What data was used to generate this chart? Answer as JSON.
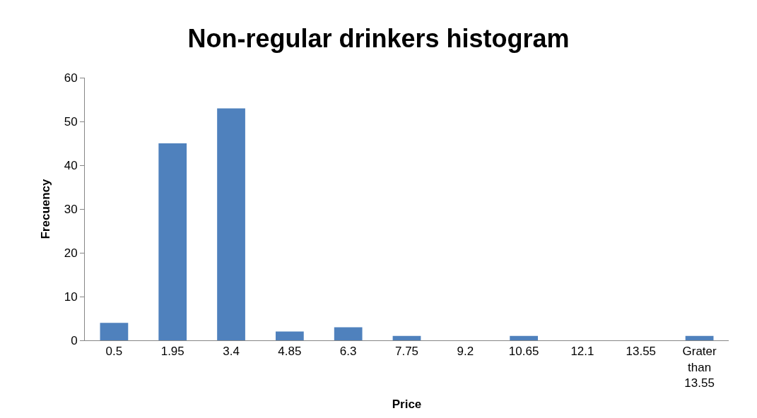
{
  "chart_data": {
    "type": "bar",
    "title": "Non-regular drinkers histogram",
    "xlabel": "Price",
    "ylabel": "Frecuency",
    "categories": [
      "0.5",
      "1.95",
      "3.4",
      "4.85",
      "6.3",
      "7.75",
      "9.2",
      "10.65",
      "12.1",
      "13.55",
      "Grater than 13.55"
    ],
    "values": [
      4,
      45,
      53,
      2,
      3,
      1,
      0,
      1,
      0,
      0,
      1
    ],
    "color": "#4f81bd",
    "ylim": [
      0,
      60
    ],
    "yticks": [
      0,
      10,
      20,
      30,
      40,
      50,
      60
    ]
  }
}
